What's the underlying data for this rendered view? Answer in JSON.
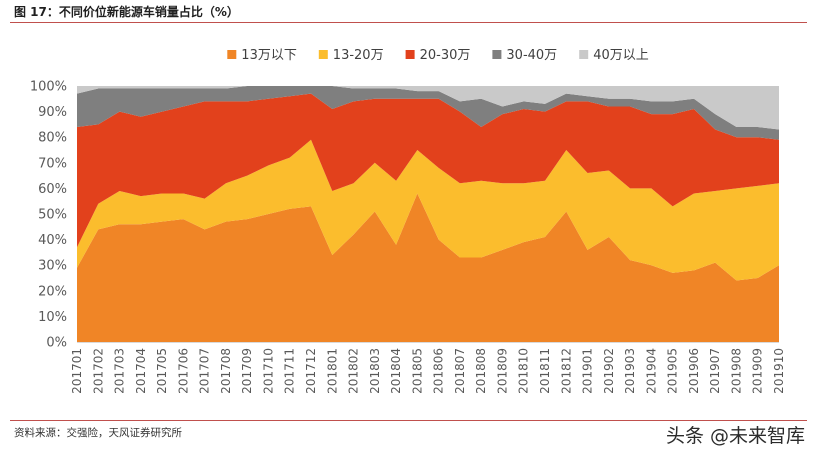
{
  "header": {
    "title": "图 17：不同价位新能源车销量占比（%）"
  },
  "footer": {
    "source": "资料来源：交强险，天风证券研究所",
    "watermark": "头条 @未来智库"
  },
  "chart_data": {
    "type": "area",
    "stacked": true,
    "title": "",
    "xlabel": "",
    "ylabel": "",
    "ylim": [
      0,
      100
    ],
    "y_ticks": [
      "0%",
      "10%",
      "20%",
      "30%",
      "40%",
      "50%",
      "60%",
      "70%",
      "80%",
      "90%",
      "100%"
    ],
    "grid": false,
    "legend_position": "top",
    "categories": [
      "201701",
      "201702",
      "201703",
      "201704",
      "201705",
      "201706",
      "201707",
      "201708",
      "201709",
      "201710",
      "201711",
      "201712",
      "201801",
      "201802",
      "201803",
      "201804",
      "201805",
      "201806",
      "201807",
      "201808",
      "201809",
      "201810",
      "201811",
      "201812",
      "201901",
      "201902",
      "201903",
      "201904",
      "201905",
      "201906",
      "201907",
      "201908",
      "201909",
      "201910"
    ],
    "series": [
      {
        "name": "13万以下",
        "color": "#f08526",
        "values": [
          29,
          44,
          46,
          46,
          47,
          48,
          44,
          47,
          48,
          50,
          52,
          53,
          34,
          42,
          51,
          38,
          58,
          40,
          33,
          33,
          36,
          39,
          41,
          51,
          36,
          41,
          32,
          30,
          27,
          28,
          31,
          24,
          25,
          30
        ]
      },
      {
        "name": "13-20万",
        "color": "#fbbd2d",
        "values": [
          8,
          10,
          13,
          11,
          11,
          10,
          12,
          15,
          17,
          19,
          20,
          26,
          25,
          20,
          19,
          25,
          17,
          28,
          29,
          30,
          26,
          23,
          22,
          24,
          30,
          26,
          28,
          30,
          26,
          30,
          28,
          36,
          36,
          32
        ]
      },
      {
        "name": "20-30万",
        "color": "#e2411c",
        "values": [
          47,
          31,
          31,
          31,
          32,
          34,
          38,
          32,
          29,
          26,
          24,
          18,
          32,
          32,
          25,
          32,
          20,
          27,
          28,
          21,
          27,
          29,
          27,
          19,
          28,
          25,
          32,
          29,
          36,
          33,
          24,
          20,
          19,
          17
        ]
      },
      {
        "name": "30-40万",
        "color": "#7f7f7f",
        "values": [
          13,
          14,
          9,
          11,
          9,
          7,
          5,
          5,
          6,
          5,
          4,
          3,
          9,
          5,
          4,
          4,
          3,
          3,
          4,
          11,
          3,
          3,
          3,
          3,
          2,
          3,
          3,
          5,
          5,
          4,
          6,
          4,
          4,
          4
        ]
      },
      {
        "name": "40万以上",
        "color": "#c9c9c9",
        "values": [
          3,
          1,
          1,
          1,
          1,
          1,
          1,
          1,
          0,
          0,
          0,
          0,
          0,
          1,
          1,
          1,
          2,
          2,
          6,
          5,
          8,
          6,
          7,
          3,
          4,
          5,
          5,
          6,
          6,
          5,
          11,
          16,
          16,
          17
        ]
      }
    ]
  }
}
